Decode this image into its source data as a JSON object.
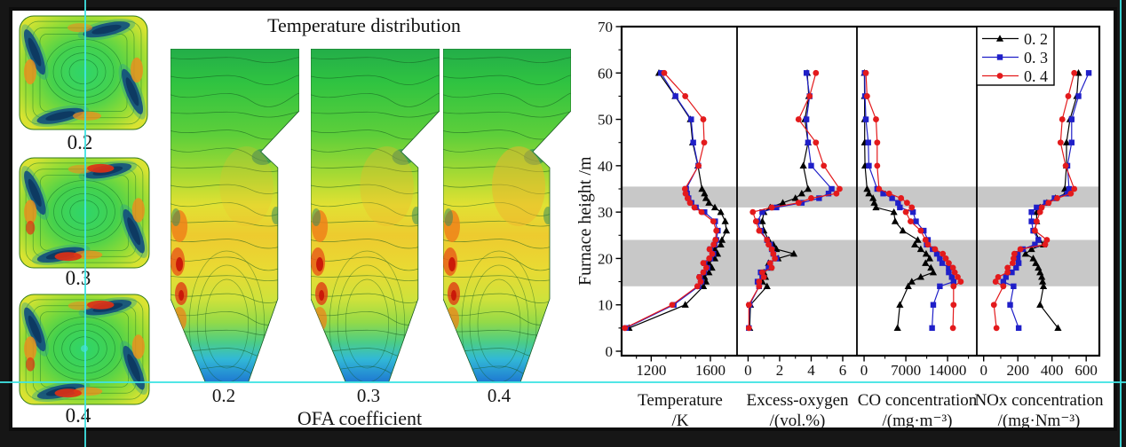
{
  "left_column": {
    "description": "furnace cross-section temperature contour maps",
    "labels": [
      "0.2",
      "0.3",
      "0.4"
    ]
  },
  "middle": {
    "title": "Temperature distribution",
    "xlabel": "OFA coefficient",
    "labels": [
      "0.2",
      "0.3",
      "0.4"
    ]
  },
  "guides": {
    "color": "#3fe3e3"
  },
  "chart_data": {
    "type": "line",
    "title": "",
    "ylabel": "Furnace height /m",
    "ylim": [
      0,
      70
    ],
    "yticks_major": [
      0,
      10,
      20,
      30,
      40,
      50,
      60,
      70
    ],
    "yticks_minor": [
      5,
      15,
      25,
      35,
      45,
      55,
      65
    ],
    "band_color": "#c8c8c8",
    "shaded_bands": [
      {
        "from": 31,
        "to": 35.5
      },
      {
        "from": 14,
        "to": 24
      }
    ],
    "legend": [
      {
        "label": "0. 2",
        "color": "#000000",
        "marker": "triangle"
      },
      {
        "label": "0. 3",
        "color": "#1f1fc8",
        "marker": "square"
      },
      {
        "label": "0. 4",
        "color": "#e31a1c",
        "marker": "circle"
      }
    ],
    "heights": [
      5,
      10,
      14,
      15,
      16,
      17,
      18,
      19,
      20,
      21,
      22,
      23,
      24,
      26,
      28,
      30,
      31,
      32,
      33,
      34,
      35,
      40,
      45,
      50,
      55,
      60
    ],
    "panels": [
      {
        "xlabel_line1": "Temperature",
        "xlabel_line2": "/K",
        "xlim": [
          1000,
          1780
        ],
        "xticks": [
          [
            1200,
            "1200"
          ],
          [
            1600,
            "1600"
          ]
        ],
        "xminor": [
          1100,
          1300,
          1400,
          1500,
          1700
        ],
        "series": [
          [
            1050,
            1430,
            1553,
            1570,
            1560,
            1590,
            1610,
            1590,
            1630,
            1648,
            1630,
            1670,
            1678,
            1708,
            1700,
            1670,
            1630,
            1590,
            1570,
            1560,
            1543,
            1516,
            1480,
            1465,
            1362,
            1252
          ],
          [
            1030,
            1352,
            1520,
            1540,
            1530,
            1558,
            1580,
            1560,
            1600,
            1620,
            1600,
            1628,
            1640,
            1650,
            1632,
            1560,
            1502,
            1472,
            1452,
            1442,
            1436,
            1518,
            1484,
            1470,
            1364,
            1266
          ],
          [
            1022,
            1342,
            1512,
            1534,
            1524,
            1552,
            1572,
            1552,
            1592,
            1612,
            1594,
            1622,
            1634,
            1640,
            1620,
            1540,
            1492,
            1462,
            1446,
            1432,
            1428,
            1520,
            1558,
            1552,
            1430,
            1288
          ]
        ]
      },
      {
        "xlabel_line1": "Excess-oxygen",
        "xlabel_line2": "/(vol.%)",
        "xlim": [
          -0.7,
          6.9
        ],
        "xticks": [
          [
            0,
            "0"
          ],
          [
            2,
            "2"
          ],
          [
            4,
            "4"
          ],
          [
            6,
            "6"
          ]
        ],
        "xminor": [
          1,
          3,
          5
        ],
        "series": [
          [
            0.1,
            0.15,
            1.2,
            0.9,
            1.1,
            1.0,
            1.4,
            1.3,
            1.9,
            2.9,
            1.8,
            1.6,
            1.3,
            1.0,
            0.9,
            1.0,
            1.4,
            2.2,
            3.0,
            3.4,
            3.8,
            3.5,
            3.8,
            3.6,
            3.85,
            3.75
          ],
          [
            0.05,
            0.1,
            0.7,
            0.6,
            0.9,
            0.8,
            1.3,
            1.4,
            1.8,
            1.6,
            1.5,
            1.4,
            1.2,
            0.8,
            0.6,
            0.9,
            1.8,
            3.4,
            4.5,
            5.1,
            5.3,
            4.0,
            3.8,
            3.7,
            3.9,
            3.7
          ],
          [
            0.05,
            0.05,
            0.7,
            0.7,
            1.0,
            0.9,
            1.5,
            1.4,
            1.7,
            1.6,
            1.5,
            1.3,
            1.2,
            0.7,
            0.5,
            0.3,
            1.5,
            3.2,
            4.0,
            5.6,
            5.8,
            4.8,
            4.3,
            3.2,
            3.9,
            4.3
          ]
        ]
      },
      {
        "xlabel_line1": "CO concentration",
        "xlabel_line2": "/(mg·m⁻³)",
        "xlim": [
          -1200,
          18900
        ],
        "xticks": [
          [
            0,
            "0"
          ],
          [
            7000,
            "7000"
          ],
          [
            14000,
            "14000"
          ]
        ],
        "xminor": [
          3500,
          10500,
          17500
        ],
        "series": [
          [
            5600,
            6000,
            7400,
            8000,
            9500,
            11600,
            11200,
            10300,
            11000,
            10400,
            9500,
            8500,
            9000,
            6500,
            5200,
            5000,
            2000,
            1700,
            1500,
            800,
            500,
            150,
            100,
            100,
            80,
            50
          ],
          [
            11400,
            11600,
            12700,
            15000,
            14700,
            14200,
            14200,
            13100,
            12700,
            12200,
            11500,
            10500,
            10700,
            10000,
            8700,
            8200,
            6000,
            5700,
            4700,
            3200,
            2200,
            800,
            700,
            300,
            150,
            100
          ],
          [
            14900,
            15000,
            15000,
            16200,
            15700,
            15200,
            14900,
            14200,
            13700,
            13200,
            11900,
            10700,
            10300,
            9500,
            7800,
            7000,
            8000,
            7200,
            6200,
            4200,
            2500,
            2200,
            2200,
            2000,
            500,
            300
          ]
        ]
      },
      {
        "xlabel_line1": "NOx concentration",
        "xlabel_line2": "/(mg·Nm⁻³)",
        "xlim": [
          -40,
          677
        ],
        "xticks": [
          [
            0,
            "0"
          ],
          [
            200,
            "200"
          ],
          [
            400,
            "400"
          ],
          [
            600,
            "600"
          ]
        ],
        "xminor": [
          100,
          300,
          500
        ],
        "series": [
          [
            435,
            330,
            350,
            345,
            340,
            330,
            320,
            305,
            290,
            245,
            280,
            350,
            325,
            300,
            310,
            310,
            330,
            370,
            420,
            480,
            475,
            485,
            485,
            505,
            545,
            555
          ],
          [
            205,
            155,
            175,
            115,
            130,
            165,
            190,
            205,
            200,
            200,
            230,
            300,
            320,
            290,
            280,
            280,
            310,
            365,
            415,
            490,
            500,
            490,
            515,
            515,
            555,
            615
          ],
          [
            75,
            60,
            115,
            70,
            85,
            140,
            140,
            170,
            175,
            180,
            215,
            360,
            370,
            300,
            310,
            330,
            340,
            380,
            430,
            510,
            530,
            480,
            450,
            460,
            495,
            530
          ]
        ]
      }
    ]
  }
}
